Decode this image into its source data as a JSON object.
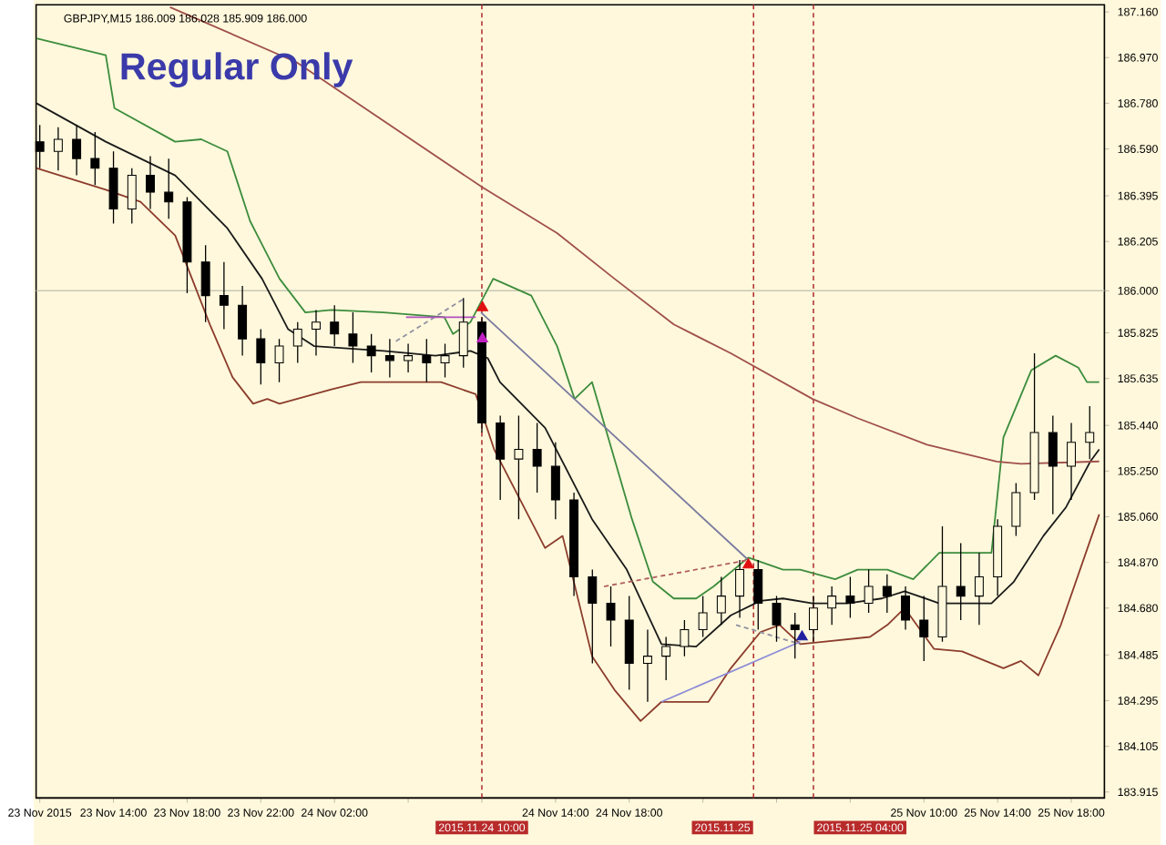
{
  "chart_data": {
    "type": "candlestick",
    "title": "Regular Only",
    "subtitle": "GBPJPY,M15  186.009 186.028 185.909 186.000",
    "x": [
      "2015-11-23T10:00",
      "2015-11-23T11:00",
      "2015-11-23T12:00",
      "2015-11-23T13:00",
      "2015-11-23T14:00",
      "2015-11-23T15:00",
      "2015-11-23T16:00",
      "2015-11-23T17:00",
      "2015-11-23T18:00",
      "2015-11-23T19:00",
      "2015-11-23T20:00",
      "2015-11-23T21:00",
      "2015-11-23T22:00",
      "2015-11-23T23:00",
      "2015-11-24T00:00",
      "2015-11-24T01:00",
      "2015-11-24T02:00",
      "2015-11-24T03:00",
      "2015-11-24T04:00",
      "2015-11-24T05:00",
      "2015-11-24T06:00",
      "2015-11-24T07:00",
      "2015-11-24T08:00",
      "2015-11-24T09:00",
      "2015-11-24T10:00",
      "2015-11-24T11:00",
      "2015-11-24T12:00",
      "2015-11-24T13:00",
      "2015-11-24T14:00",
      "2015-11-24T15:00",
      "2015-11-24T16:00",
      "2015-11-24T17:00",
      "2015-11-24T18:00",
      "2015-11-24T19:00",
      "2015-11-24T20:00",
      "2015-11-24T21:00",
      "2015-11-24T22:00",
      "2015-11-24T23:00",
      "2015-11-25T00:00",
      "2015-11-25T01:00",
      "2015-11-25T02:00",
      "2015-11-25T03:00",
      "2015-11-25T04:00",
      "2015-11-25T05:00",
      "2015-11-25T06:00",
      "2015-11-25T07:00",
      "2015-11-25T08:00",
      "2015-11-25T09:00",
      "2015-11-25T10:00",
      "2015-11-25T11:00",
      "2015-11-25T12:00",
      "2015-11-25T13:00",
      "2015-11-25T14:00",
      "2015-11-25T15:00",
      "2015-11-25T16:00",
      "2015-11-25T17:00",
      "2015-11-25T18:00",
      "2015-11-25T19:00"
    ],
    "ohlc": [
      [
        186.62,
        186.69,
        186.51,
        186.58
      ],
      [
        186.58,
        186.68,
        186.5,
        186.63
      ],
      [
        186.63,
        186.69,
        186.48,
        186.55
      ],
      [
        186.55,
        186.66,
        186.44,
        186.51
      ],
      [
        186.51,
        186.58,
        186.28,
        186.34
      ],
      [
        186.34,
        186.51,
        186.28,
        186.48
      ],
      [
        186.48,
        186.56,
        186.34,
        186.41
      ],
      [
        186.41,
        186.55,
        186.3,
        186.37
      ],
      [
        186.37,
        186.39,
        185.99,
        186.12
      ],
      [
        186.12,
        186.19,
        185.87,
        185.98
      ],
      [
        185.98,
        186.12,
        185.84,
        185.94
      ],
      [
        185.94,
        186.02,
        185.73,
        185.8
      ],
      [
        185.8,
        185.84,
        185.61,
        185.7
      ],
      [
        185.7,
        185.8,
        185.62,
        185.77
      ],
      [
        185.77,
        185.87,
        185.7,
        185.84
      ],
      [
        185.84,
        185.92,
        185.73,
        185.87
      ],
      [
        185.87,
        185.94,
        185.77,
        185.82
      ],
      [
        185.82,
        185.91,
        185.7,
        185.77
      ],
      [
        185.77,
        185.82,
        185.66,
        185.73
      ],
      [
        185.73,
        185.8,
        185.64,
        185.71
      ],
      [
        185.71,
        185.78,
        185.66,
        185.73
      ],
      [
        185.73,
        185.8,
        185.62,
        185.7
      ],
      [
        185.7,
        185.78,
        185.64,
        185.73
      ],
      [
        185.73,
        185.97,
        185.68,
        185.87
      ],
      [
        185.87,
        185.89,
        185.41,
        185.45
      ],
      [
        185.45,
        185.48,
        185.13,
        185.3
      ],
      [
        185.3,
        185.48,
        185.05,
        185.34
      ],
      [
        185.34,
        185.45,
        185.16,
        185.27
      ],
      [
        185.27,
        185.37,
        185.05,
        185.13
      ],
      [
        185.13,
        185.16,
        184.73,
        184.81
      ],
      [
        184.81,
        184.84,
        184.45,
        184.7
      ],
      [
        184.7,
        184.77,
        184.52,
        184.63
      ],
      [
        184.63,
        184.73,
        184.34,
        184.45
      ],
      [
        184.45,
        184.59,
        184.29,
        184.48
      ],
      [
        184.48,
        184.56,
        184.38,
        184.52
      ],
      [
        184.52,
        184.63,
        184.48,
        184.59
      ],
      [
        184.59,
        184.73,
        184.56,
        184.66
      ],
      [
        184.66,
        184.81,
        184.61,
        184.73
      ],
      [
        184.73,
        184.88,
        184.64,
        184.84
      ],
      [
        184.84,
        184.88,
        184.59,
        184.7
      ],
      [
        184.7,
        184.73,
        184.54,
        184.61
      ],
      [
        184.61,
        184.66,
        184.47,
        184.59
      ],
      [
        184.59,
        184.73,
        184.54,
        184.68
      ],
      [
        184.68,
        184.77,
        184.61,
        184.73
      ],
      [
        184.73,
        184.81,
        184.64,
        184.7
      ],
      [
        184.7,
        184.84,
        184.66,
        184.77
      ],
      [
        184.77,
        184.82,
        184.66,
        184.73
      ],
      [
        184.73,
        184.77,
        184.59,
        184.63
      ],
      [
        184.63,
        184.73,
        184.46,
        184.56
      ],
      [
        184.56,
        185.02,
        184.54,
        184.77
      ],
      [
        184.77,
        184.95,
        184.63,
        184.73
      ],
      [
        184.73,
        184.91,
        184.61,
        184.81
      ],
      [
        184.81,
        185.05,
        184.73,
        185.02
      ],
      [
        185.02,
        185.2,
        184.98,
        185.16
      ],
      [
        185.16,
        185.74,
        185.13,
        185.41
      ],
      [
        185.41,
        185.48,
        185.07,
        185.27
      ],
      [
        185.27,
        185.45,
        185.13,
        185.37
      ],
      [
        185.37,
        185.52,
        185.3,
        185.41
      ]
    ],
    "series": [
      {
        "type": "line",
        "color": "#3c8c3c",
        "x": [
          "2015-11-23T09:49",
          "2015-11-23T13:35",
          "2015-11-23T14:03",
          "2015-11-23T17:21",
          "2015-11-23T18:46",
          "2015-11-23T20:11",
          "2015-11-23T21:25",
          "2015-11-23T23:01",
          "2015-11-24T00:25",
          "2015-11-24T01:50",
          "2015-11-24T04:40",
          "2015-11-24T07:58",
          "2015-11-24T08:26",
          "2015-11-24T09:23",
          "2015-11-24T10:37",
          "2015-11-24T12:41",
          "2015-11-24T14:05",
          "2015-11-24T15:02",
          "2015-11-24T15:59",
          "2015-11-24T18:09",
          "2015-11-24T19:17",
          "2015-11-24T20:25",
          "2015-11-24T21:38",
          "2015-11-24T22:35",
          "2015-11-25T00:28",
          "2015-11-25T02:21",
          "2015-11-25T03:17",
          "2015-11-25T05:11",
          "2015-11-25T06:24",
          "2015-11-25T08:01",
          "2015-11-25T09:25",
          "2015-11-25T10:50",
          "2015-11-25T13:40",
          "2015-11-25T14:19",
          "2015-11-25T15:50",
          "2015-11-25T17:09",
          "2015-11-25T18:23",
          "2015-11-25T18:51",
          "2015-11-25T19:31"
        ],
        "values": [
          187.05,
          186.98,
          186.76,
          186.62,
          186.63,
          186.58,
          186.29,
          186.05,
          185.91,
          185.92,
          185.91,
          185.89,
          185.82,
          185.87,
          186.05,
          185.98,
          185.77,
          185.55,
          185.62,
          185.05,
          184.79,
          184.72,
          184.72,
          184.77,
          184.89,
          184.84,
          184.84,
          184.8,
          184.84,
          184.84,
          184.8,
          184.91,
          184.91,
          185.39,
          185.67,
          185.73,
          185.68,
          185.62,
          185.62
        ]
      },
      {
        "type": "line",
        "color": "#1a1a1a",
        "x": [
          "2015-11-23T09:49",
          "2015-11-23T13:35",
          "2015-11-23T15:28",
          "2015-11-23T17:21",
          "2015-11-23T20:11",
          "2015-11-23T22:04",
          "2015-11-23T23:29",
          "2015-11-24T00:53",
          "2015-11-24T04:40",
          "2015-11-24T07:29",
          "2015-11-24T09:23",
          "2015-11-24T10:19",
          "2015-11-24T10:59",
          "2015-11-24T13:26",
          "2015-11-24T15:59",
          "2015-11-24T17:52",
          "2015-11-24T19:45",
          "2015-11-24T21:38",
          "2015-11-24T23:31",
          "2015-11-25T01:07",
          "2015-11-25T02:21",
          "2015-11-25T03:57",
          "2015-11-25T05:50",
          "2015-11-25T07:43",
          "2015-11-25T08:57",
          "2015-11-25T10:50",
          "2015-11-25T13:40",
          "2015-11-25T14:53",
          "2015-11-25T16:29",
          "2015-11-25T17:43",
          "2015-11-25T19:02",
          "2015-11-25T19:31"
        ],
        "values": [
          186.78,
          186.62,
          186.55,
          186.48,
          186.26,
          186.05,
          185.84,
          185.77,
          185.75,
          185.73,
          185.75,
          185.72,
          185.62,
          185.43,
          185.05,
          184.84,
          184.53,
          184.52,
          184.65,
          184.71,
          184.72,
          184.7,
          184.7,
          184.72,
          184.75,
          184.7,
          184.7,
          184.79,
          184.98,
          185.1,
          185.29,
          185.34
        ]
      },
      {
        "type": "line",
        "color": "#8c3c2c",
        "x": [
          "2015-11-23T09:49",
          "2015-11-23T13:35",
          "2015-11-23T15:28",
          "2015-11-23T17:21",
          "2015-11-23T19:14",
          "2015-11-23T20:28",
          "2015-11-23T21:35",
          "2015-11-23T22:21",
          "2015-11-23T23:01",
          "2015-11-24T01:50",
          "2015-11-24T03:26",
          "2015-11-24T07:47",
          "2015-11-24T09:40",
          "2015-11-24T10:40",
          "2015-11-24T13:26",
          "2015-11-24T14:23",
          "2015-11-24T15:59",
          "2015-11-24T17:12",
          "2015-11-24T18:37",
          "2015-11-24T19:45",
          "2015-11-24T22:18",
          "2015-11-24T23:31",
          "2015-11-25T01:07",
          "2015-11-25T02:10",
          "2015-11-25T03:17",
          "2015-11-25T04:31",
          "2015-11-25T07:04",
          "2015-11-25T08:01",
          "2015-11-25T08:57",
          "2015-11-25T10:33",
          "2015-11-25T12:04",
          "2015-11-25T14:19",
          "2015-11-25T15:16",
          "2015-11-25T16:13",
          "2015-11-25T17:26",
          "2015-11-25T19:31"
        ],
        "values": [
          186.51,
          186.42,
          186.37,
          186.23,
          185.86,
          185.64,
          185.53,
          185.55,
          185.53,
          185.59,
          185.62,
          185.62,
          185.57,
          185.34,
          184.93,
          184.98,
          184.48,
          184.34,
          184.21,
          184.29,
          184.29,
          184.43,
          184.58,
          184.61,
          184.53,
          184.54,
          184.56,
          184.61,
          184.68,
          184.51,
          184.5,
          184.43,
          184.46,
          184.4,
          184.61,
          185.07
        ]
      },
      {
        "type": "line",
        "color": "#a0504a",
        "x": [
          "2015-11-23T17:04",
          "2015-11-23T23:57",
          "2015-11-24T10:02",
          "2015-11-24T14:05",
          "2015-11-24T17:12",
          "2015-11-24T20:25",
          "2015-11-24T23:31",
          "2015-11-25T03:57",
          "2015-11-25T06:24",
          "2015-11-25T10:10",
          "2015-11-25T13:57",
          "2015-11-25T15:16",
          "2015-11-25T19:31"
        ],
        "values": [
          187.18,
          186.95,
          186.43,
          186.24,
          186.05,
          185.86,
          185.74,
          185.55,
          185.47,
          185.36,
          185.29,
          185.28,
          185.29
        ]
      },
      {
        "type": "line",
        "color": "#7a7aa0",
        "x": [
          "2015-11-24T09:57",
          "2015-11-25T00:28"
        ],
        "values": [
          185.91,
          184.88
        ]
      },
      {
        "type": "line",
        "color": "#8c8cd8",
        "x": [
          "2015-11-24T19:45",
          "2015-11-25T03:17"
        ],
        "values": [
          184.29,
          184.54
        ]
      },
      {
        "type": "line",
        "color": "#b06060",
        "line_style": "dashed",
        "x": [
          "2015-11-24T16:38",
          "2015-11-25T00:28"
        ],
        "values": [
          184.77,
          184.88
        ]
      },
      {
        "type": "line",
        "color": "#9090a0",
        "line_style": "dashed",
        "x": [
          "2015-11-24T23:48",
          "2015-11-25T03:17"
        ],
        "values": [
          184.61,
          184.53
        ]
      },
      {
        "type": "line",
        "color": "#9090a0",
        "line_style": "dashed",
        "x": [
          "2015-11-24T05:20",
          "2015-11-24T09:06"
        ],
        "values": [
          185.79,
          185.97
        ]
      },
      {
        "type": "line",
        "color": "#b050c0",
        "x": [
          "2015-11-24T05:53",
          "2015-11-24T09:40"
        ],
        "values": [
          185.89,
          185.89
        ]
      },
      {
        "type": "scatter",
        "marker": "triangle",
        "color": "#e01010",
        "x": [
          "2015-11-24T10:02",
          "2015-11-25T00:28"
        ],
        "values": [
          185.93,
          184.86
        ]
      },
      {
        "type": "scatter",
        "marker": "triangle",
        "color": "#c020c0",
        "x": [
          "2015-11-24T10:02"
        ],
        "values": [
          185.8
        ]
      },
      {
        "type": "scatter",
        "marker": "triangle",
        "color": "#2020a0",
        "x": [
          "2015-11-25T03:23"
        ],
        "values": [
          184.56
        ]
      }
    ],
    "xlim": [
      "2015-11-23T09:48",
      "2015-11-25T19:48"
    ],
    "ylim": [
      183.89,
      187.19
    ],
    "xticks": [
      {
        "value": "2015-11-23T10:00",
        "label": "23 Nov 2015"
      },
      {
        "value": "2015-11-23T14:00",
        "label": "23 Nov 14:00"
      },
      {
        "value": "2015-11-23T18:00",
        "label": "23 Nov 18:00"
      },
      {
        "value": "2015-11-23T22:00",
        "label": "23 Nov 22:00"
      },
      {
        "value": "2015-11-24T02:00",
        "label": "24 Nov 02:00"
      },
      {
        "value": "2015-11-24T06:00",
        "label": null
      },
      {
        "value": "2015-11-24T10:00",
        "label": null
      },
      {
        "value": "2015-11-24T14:00",
        "label": "24 Nov 14:00"
      },
      {
        "value": "2015-11-24T18:00",
        "label": "24 Nov 18:00"
      },
      {
        "value": "2015-11-24T22:00",
        "label": null
      },
      {
        "value": "2015-11-25T02:00",
        "label": null
      },
      {
        "value": "2015-11-25T06:00",
        "label": null
      },
      {
        "value": "2015-11-25T10:00",
        "label": "25 Nov 10:00"
      },
      {
        "value": "2015-11-25T14:00",
        "label": "25 Nov 14:00"
      },
      {
        "value": "2015-11-25T18:00",
        "label": "25 Nov 18:00"
      }
    ],
    "yticks": [
      {
        "value": 183.915,
        "label": "183.915"
      },
      {
        "value": 184.105,
        "label": "184.105"
      },
      {
        "value": 184.295,
        "label": "184.295"
      },
      {
        "value": 184.485,
        "label": "184.485"
      },
      {
        "value": 184.68,
        "label": "184.680"
      },
      {
        "value": 184.87,
        "label": "184.870"
      },
      {
        "value": 185.06,
        "label": "185.060"
      },
      {
        "value": 185.25,
        "label": "185.250"
      },
      {
        "value": 185.44,
        "label": "185.440"
      },
      {
        "value": 185.635,
        "label": "185.635"
      },
      {
        "value": 185.825,
        "label": "185.825"
      },
      {
        "value": 186.0,
        "label": "186.000"
      },
      {
        "value": 186.205,
        "label": "186.205"
      },
      {
        "value": 186.395,
        "label": "186.395"
      },
      {
        "value": 186.59,
        "label": "186.590"
      },
      {
        "value": 186.78,
        "label": "186.780"
      },
      {
        "value": 186.97,
        "label": "186.970"
      },
      {
        "value": 187.16,
        "label": "187.160"
      }
    ],
    "ref_lines": [
      {
        "axis": "x",
        "value": "2015-11-24T10:00",
        "label": "2015.11.24 10:00",
        "color": "#b03030",
        "line_style": "dashed"
      },
      {
        "axis": "x",
        "value": "2015-11-25T00:45",
        "label": "2015.11.25",
        "color": "#b03030",
        "line_style": "dashed"
      },
      {
        "axis": "x",
        "value": "2015-11-25T04:00",
        "label": "2015.11.25 04:00",
        "color": "#b03030",
        "line_style": "dashed"
      },
      {
        "axis": "y",
        "value": 186.0,
        "color": "#c8c8b4",
        "line_style": "solid"
      }
    ]
  }
}
